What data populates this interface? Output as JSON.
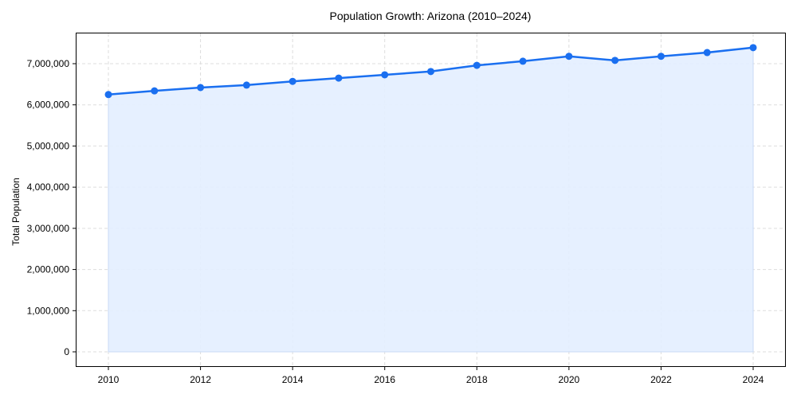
{
  "chart_data": {
    "type": "line",
    "title": "Population Growth: Arizona (2010–2024)",
    "xlabel": "",
    "ylabel": "Total Population",
    "x": [
      2010,
      2011,
      2012,
      2013,
      2014,
      2015,
      2016,
      2017,
      2018,
      2019,
      2020,
      2021,
      2022,
      2023,
      2024
    ],
    "series": [
      {
        "name": "Total Population",
        "values": [
          6250000,
          6340000,
          6420000,
          6480000,
          6570000,
          6650000,
          6730000,
          6810000,
          6960000,
          7060000,
          7180000,
          7080000,
          7180000,
          7270000,
          7390000
        ],
        "color": "#1a6ff0",
        "fill": "#e3eeff",
        "marker": "circle"
      }
    ],
    "xticks": [
      "2010",
      "2012",
      "2014",
      "2016",
      "2018",
      "2020",
      "2022",
      "2024"
    ],
    "yticks": [
      "0",
      "1,000,000",
      "2,000,000",
      "3,000,000",
      "4,000,000",
      "5,000,000",
      "6,000,000",
      "7,000,000"
    ],
    "ylim": [
      -400000,
      7700000
    ],
    "xlim": [
      2009.3,
      2024.7
    ],
    "grid": true,
    "legend": null
  }
}
